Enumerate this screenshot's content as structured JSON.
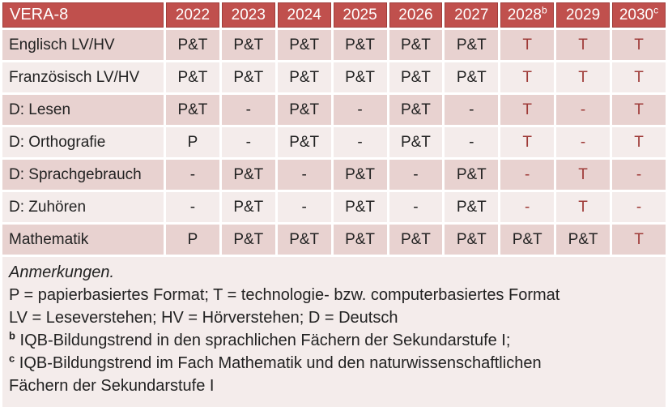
{
  "table": {
    "title": "VERA-8",
    "years": [
      {
        "label": "2022",
        "sup": ""
      },
      {
        "label": "2023",
        "sup": ""
      },
      {
        "label": "2024",
        "sup": ""
      },
      {
        "label": "2025",
        "sup": ""
      },
      {
        "label": "2026",
        "sup": ""
      },
      {
        "label": "2027",
        "sup": ""
      },
      {
        "label": "2028",
        "sup": "b"
      },
      {
        "label": "2029",
        "sup": ""
      },
      {
        "label": "2030",
        "sup": "c"
      }
    ],
    "rows": [
      {
        "label": "Englisch LV/HV",
        "cells": [
          {
            "v": "P&T",
            "red": false
          },
          {
            "v": "P&T",
            "red": false
          },
          {
            "v": "P&T",
            "red": false
          },
          {
            "v": "P&T",
            "red": false
          },
          {
            "v": "P&T",
            "red": false
          },
          {
            "v": "P&T",
            "red": false
          },
          {
            "v": "T",
            "red": true
          },
          {
            "v": "T",
            "red": true
          },
          {
            "v": "T",
            "red": true
          }
        ]
      },
      {
        "label": "Französisch LV/HV",
        "cells": [
          {
            "v": "P&T",
            "red": false
          },
          {
            "v": "P&T",
            "red": false
          },
          {
            "v": "P&T",
            "red": false
          },
          {
            "v": "P&T",
            "red": false
          },
          {
            "v": "P&T",
            "red": false
          },
          {
            "v": "P&T",
            "red": false
          },
          {
            "v": "T",
            "red": true
          },
          {
            "v": "T",
            "red": true
          },
          {
            "v": "T",
            "red": true
          }
        ]
      },
      {
        "label": "D: Lesen",
        "cells": [
          {
            "v": "P&T",
            "red": false
          },
          {
            "v": "-",
            "red": false
          },
          {
            "v": "P&T",
            "red": false
          },
          {
            "v": "-",
            "red": false
          },
          {
            "v": "P&T",
            "red": false
          },
          {
            "v": "-",
            "red": false
          },
          {
            "v": "T",
            "red": true
          },
          {
            "v": "-",
            "red": true
          },
          {
            "v": "T",
            "red": true
          }
        ]
      },
      {
        "label": "D: Orthografie",
        "cells": [
          {
            "v": "P",
            "red": false
          },
          {
            "v": "-",
            "red": false
          },
          {
            "v": "P&T",
            "red": false
          },
          {
            "v": "-",
            "red": false
          },
          {
            "v": "P&T",
            "red": false
          },
          {
            "v": "-",
            "red": false
          },
          {
            "v": "T",
            "red": true
          },
          {
            "v": "-",
            "red": true
          },
          {
            "v": "T",
            "red": true
          }
        ]
      },
      {
        "label": "D: Sprachgebrauch",
        "cells": [
          {
            "v": "-",
            "red": false
          },
          {
            "v": "P&T",
            "red": false
          },
          {
            "v": "-",
            "red": false
          },
          {
            "v": "P&T",
            "red": false
          },
          {
            "v": "-",
            "red": false
          },
          {
            "v": "P&T",
            "red": false
          },
          {
            "v": "-",
            "red": true
          },
          {
            "v": "T",
            "red": true
          },
          {
            "v": "-",
            "red": true
          }
        ]
      },
      {
        "label": "D: Zuhören",
        "cells": [
          {
            "v": "-",
            "red": false
          },
          {
            "v": "P&T",
            "red": false
          },
          {
            "v": "-",
            "red": false
          },
          {
            "v": "P&T",
            "red": false
          },
          {
            "v": "-",
            "red": false
          },
          {
            "v": "P&T",
            "red": false
          },
          {
            "v": "-",
            "red": true
          },
          {
            "v": "T",
            "red": true
          },
          {
            "v": "-",
            "red": true
          }
        ]
      },
      {
        "label": "Mathematik",
        "cells": [
          {
            "v": "P",
            "red": false
          },
          {
            "v": "P&T",
            "red": false
          },
          {
            "v": "P&T",
            "red": false
          },
          {
            "v": "P&T",
            "red": false
          },
          {
            "v": "P&T",
            "red": false
          },
          {
            "v": "P&T",
            "red": false
          },
          {
            "v": "P&T",
            "red": false
          },
          {
            "v": "P&T",
            "red": false
          },
          {
            "v": "T",
            "red": true
          }
        ]
      }
    ]
  },
  "notes": {
    "heading": "Anmerkungen.",
    "lines": [
      {
        "sup": "",
        "text": "P = papierbasiertes Format; T = technologie- bzw. computerbasiertes Format"
      },
      {
        "sup": "",
        "text": "LV = Leseverstehen; HV = Hörverstehen; D = Deutsch"
      },
      {
        "sup": "b",
        "text": "IQB-Bildungstrend in den sprachlichen Fächern der Sekundarstufe I;"
      },
      {
        "sup": "c",
        "text": "IQB-Bildungstrend im Fach Mathematik und den naturwissenschaftlichen"
      },
      {
        "sup": "",
        "text": "Fächern der Sekundarstufe I"
      }
    ]
  },
  "colors": {
    "header_bg": "#C0504D",
    "header_border": "#A03E3B",
    "band_dark": "#E8D2D0",
    "band_light": "#F4ECEB",
    "red_text": "#9E3A37",
    "header_text": "#ffffff",
    "body_text": "#222222"
  }
}
